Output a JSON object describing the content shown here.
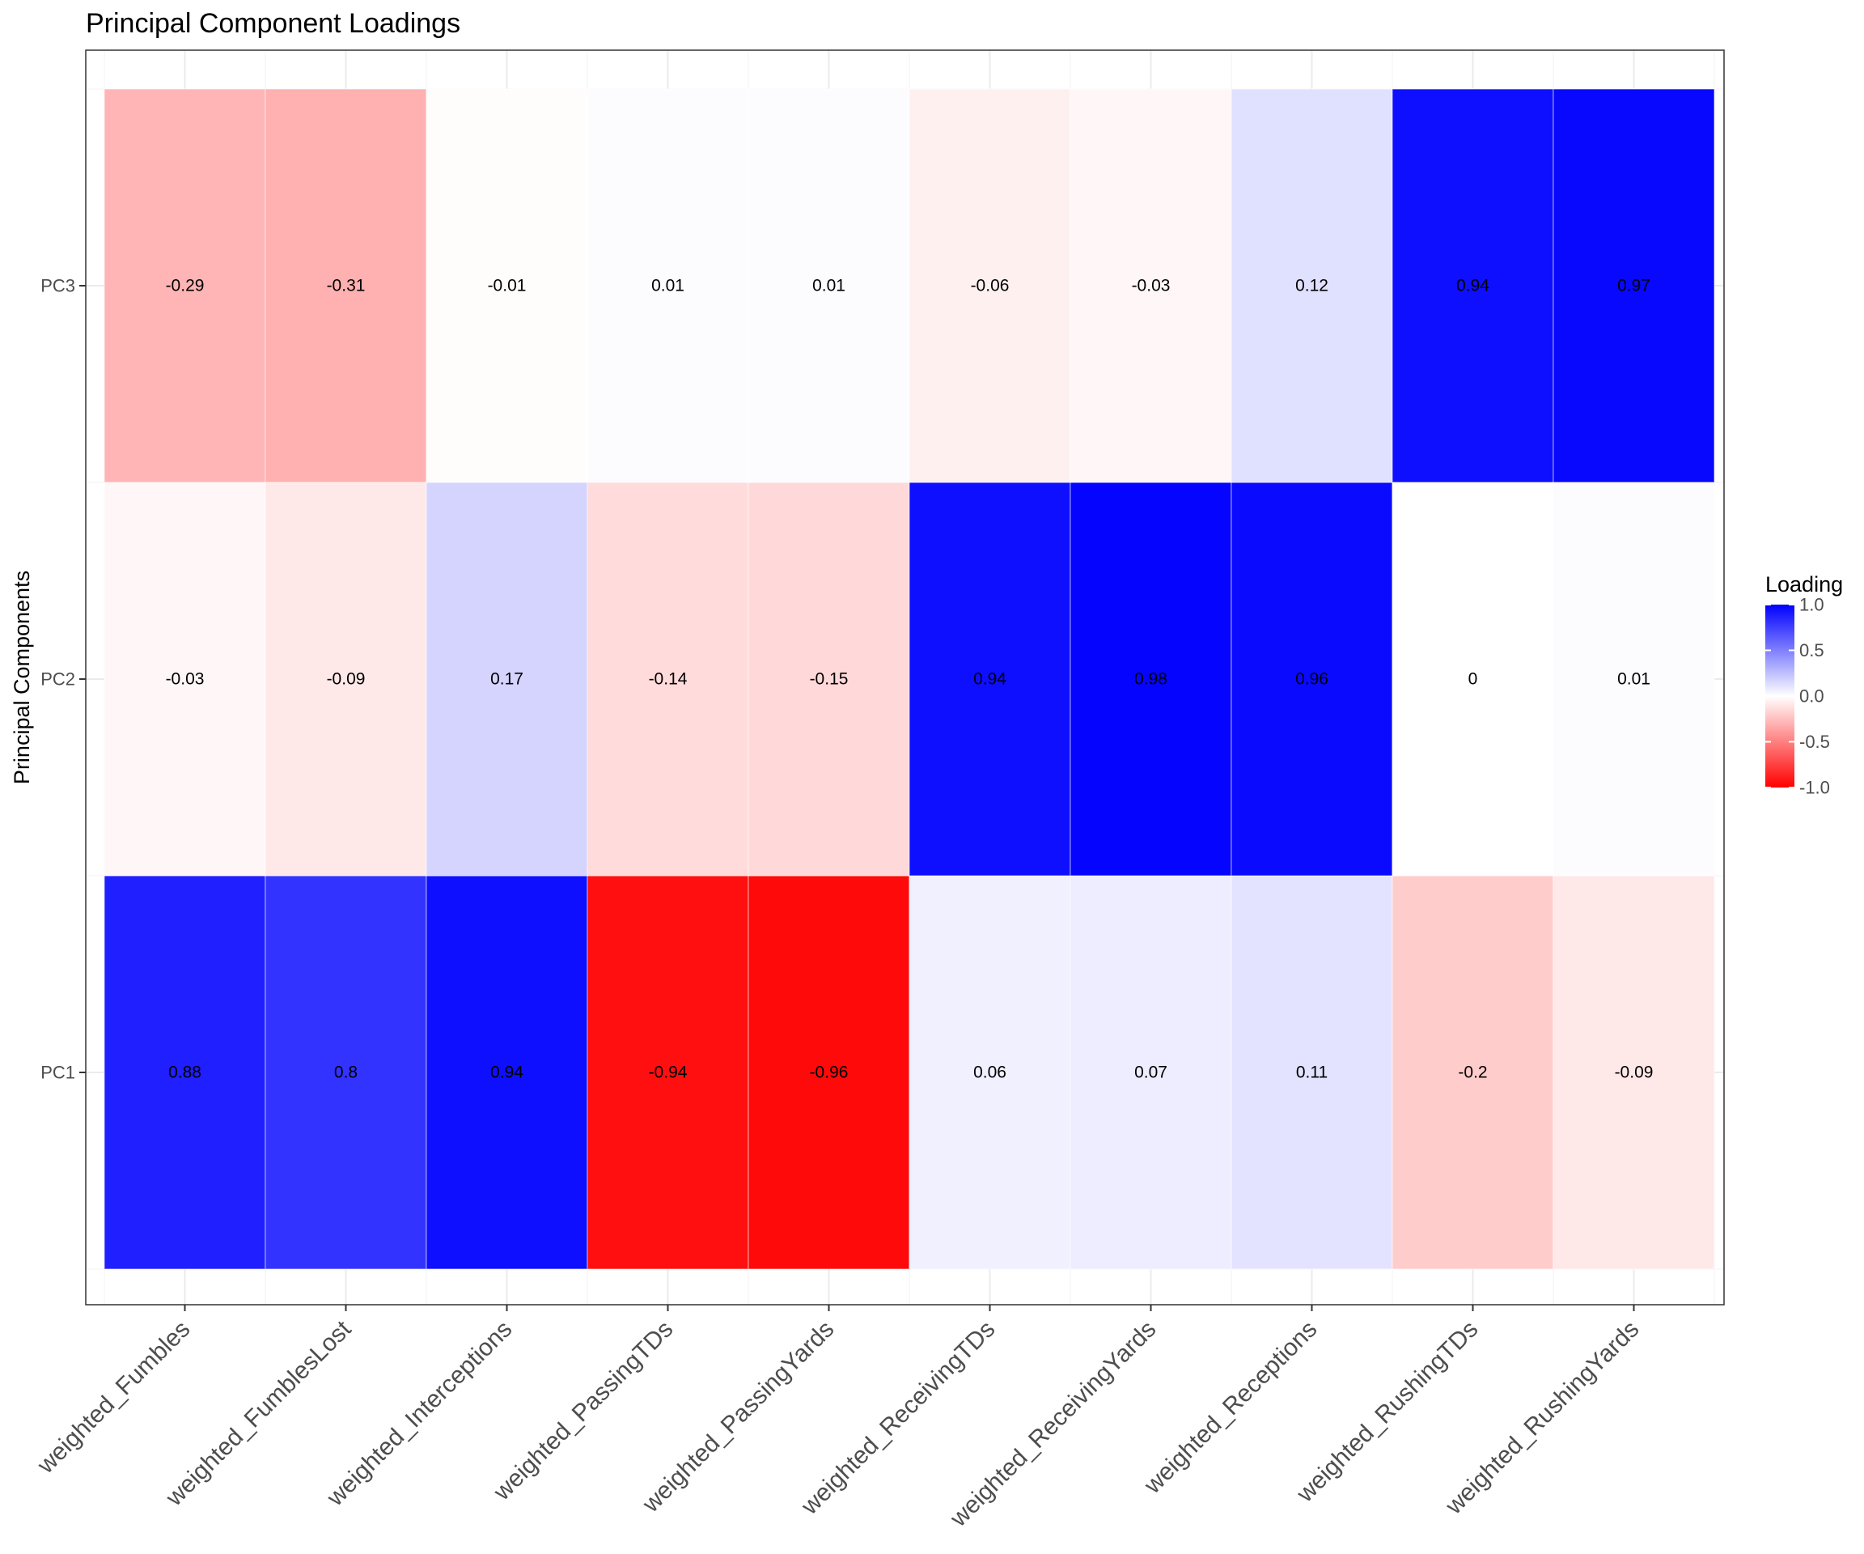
{
  "chart_data": {
    "type": "heatmap",
    "title": "Principal Component Loadings",
    "xlabel": "",
    "ylabel": "Principal Components",
    "x_categories": [
      "weighted_Fumbles",
      "weighted_FumblesLost",
      "weighted_Interceptions",
      "weighted_PassingTDs",
      "weighted_PassingYards",
      "weighted_ReceivingTDs",
      "weighted_ReceivingYards",
      "weighted_Receptions",
      "weighted_RushingTDs",
      "weighted_RushingYards"
    ],
    "y_categories": [
      "PC1",
      "PC2",
      "PC3"
    ],
    "values": [
      [
        0.88,
        0.8,
        0.94,
        -0.94,
        -0.96,
        0.06,
        0.07,
        0.11,
        -0.2,
        -0.09
      ],
      [
        -0.03,
        -0.09,
        0.17,
        -0.14,
        -0.15,
        0.94,
        0.98,
        0.96,
        0,
        0.01
      ],
      [
        -0.29,
        -0.31,
        -0.01,
        0.01,
        0.01,
        -0.06,
        -0.03,
        0.12,
        0.94,
        0.97
      ]
    ],
    "value_labels": [
      [
        "0.88",
        "0.8",
        "0.94",
        "-0.94",
        "-0.96",
        "0.06",
        "0.07",
        "0.11",
        "-0.2",
        "-0.09"
      ],
      [
        "-0.03",
        "-0.09",
        "0.17",
        "-0.14",
        "-0.15",
        "0.94",
        "0.98",
        "0.96",
        "0",
        "0.01"
      ],
      [
        "-0.29",
        "-0.31",
        "-0.01",
        "0.01",
        "0.01",
        "-0.06",
        "-0.03",
        "0.12",
        "0.94",
        "0.97"
      ]
    ],
    "color_scale": {
      "low": "#ff0000",
      "mid": "#ffffff",
      "high": "#0000ff",
      "limits": [
        -1,
        1
      ]
    },
    "legend": {
      "title": "Loading",
      "placement": "right",
      "ticks": [
        1.0,
        0.5,
        0.0,
        -0.5,
        -1.0
      ],
      "tick_labels": [
        "1.0",
        "0.5",
        "0.0",
        "-0.5",
        "-1.0"
      ]
    },
    "grid": true
  }
}
